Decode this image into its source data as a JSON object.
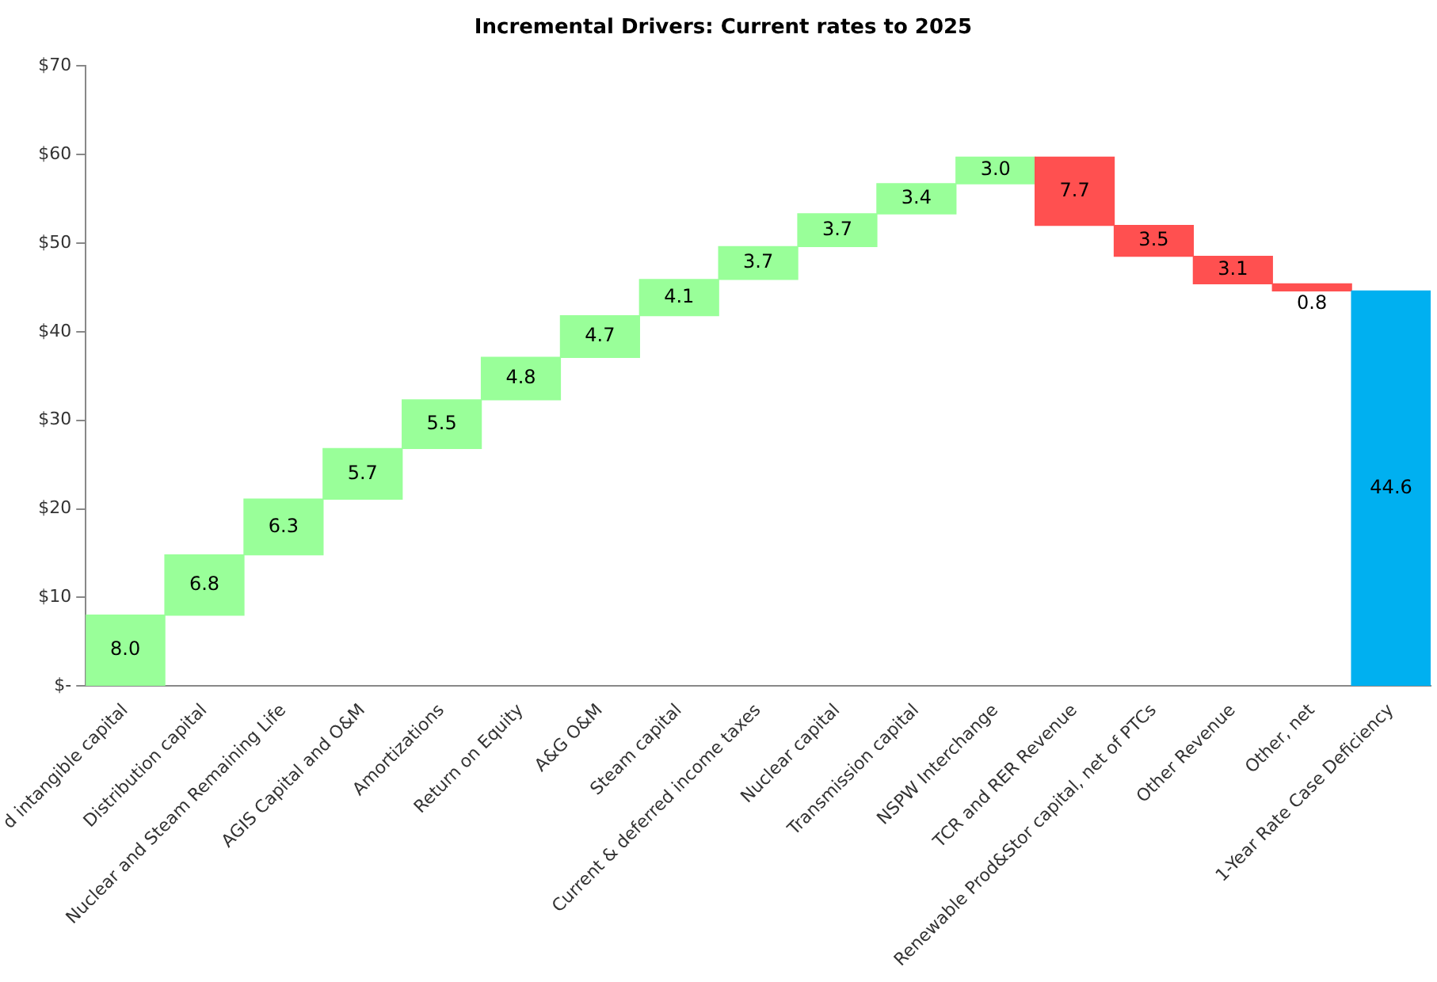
{
  "chart_data": {
    "type": "bar",
    "title": "Incremental Drivers: Current rates to 2025",
    "categories": [
      "d intangible capital",
      "Distribution capital",
      "Nuclear and Steam Remaining Life",
      "AGIS Capital and O&M",
      "Amortizations",
      "Return on Equity",
      "A&G O&M",
      "Steam capital",
      "Current & deferred income taxes",
      "Nuclear capital",
      "Transmission capital",
      "NSPW Interchange",
      "TCR and RER Revenue",
      "Renewable Prod&Stor capital, net of PTCs",
      "Other Revenue",
      "Other, net",
      "1-Year Rate Case Deficiency"
    ],
    "values": [
      8.0,
      6.8,
      6.3,
      5.7,
      5.5,
      4.8,
      4.7,
      4.1,
      3.7,
      3.7,
      3.4,
      3.0,
      7.7,
      3.5,
      3.1,
      0.8,
      44.6
    ],
    "base": [
      0,
      8.0,
      14.8,
      21.1,
      26.8,
      32.3,
      37.1,
      41.8,
      45.9,
      49.6,
      53.3,
      56.7,
      52.0,
      48.5,
      45.4,
      44.6,
      0
    ],
    "colors": [
      "#99ff99",
      "#99ff99",
      "#99ff99",
      "#99ff99",
      "#99ff99",
      "#99ff99",
      "#99ff99",
      "#99ff99",
      "#99ff99",
      "#99ff99",
      "#99ff99",
      "#99ff99",
      "#ff5050",
      "#ff5050",
      "#ff5050",
      "#ff5050",
      "#00b0f0"
    ],
    "ylim": [
      0,
      70
    ],
    "yticks": [
      {
        "value": 0,
        "label": "$-"
      },
      {
        "value": 10,
        "label": "$10"
      },
      {
        "value": 20,
        "label": "$20"
      },
      {
        "value": 30,
        "label": "$30"
      },
      {
        "value": 40,
        "label": "$40"
      },
      {
        "value": 50,
        "label": "$50"
      },
      {
        "value": 60,
        "label": "$60"
      },
      {
        "value": 70,
        "label": "$70"
      }
    ],
    "value_labels": [
      "8.0",
      "6.8",
      "6.3",
      "5.7",
      "5.5",
      "4.8",
      "4.7",
      "4.1",
      "3.7",
      "3.7",
      "3.4",
      "3.0",
      "7.7",
      "3.5",
      "3.1",
      "0.8",
      "44.6"
    ],
    "grid": false,
    "legend": false
  }
}
